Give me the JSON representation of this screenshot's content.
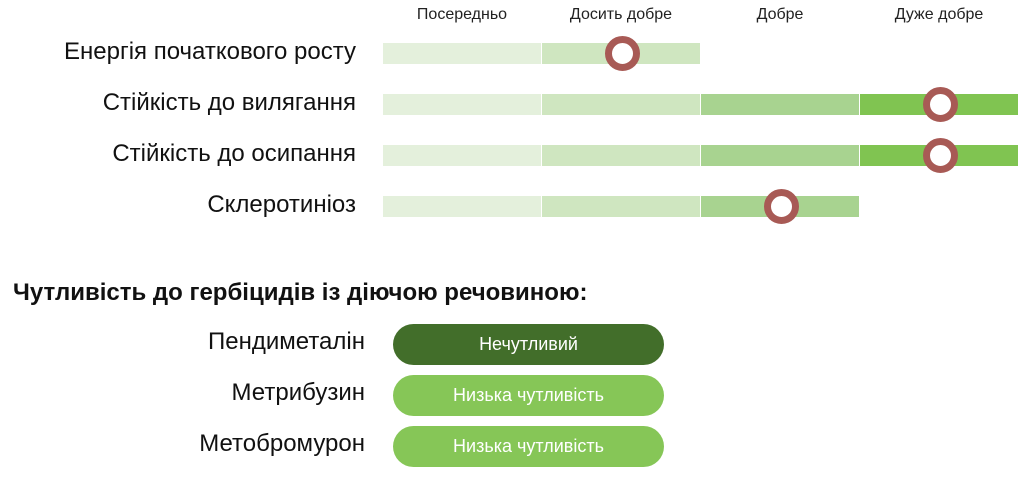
{
  "scale_headers": [
    "Посередньо",
    "Досить добре",
    "Добре",
    "Дуже добре"
  ],
  "traits": [
    {
      "label": "Енергія початкового росту",
      "level_max": 2,
      "rating": 1.5
    },
    {
      "label": "Стійкість до вилягання",
      "level_max": 4,
      "rating": 3.5
    },
    {
      "label": "Стійкість до осипання",
      "level_max": 4,
      "rating": 3.5
    },
    {
      "label": "Склеротиніоз",
      "level_max": 3,
      "rating": 2.5
    }
  ],
  "herbicides": {
    "title": "Чутливість до гербіцидів із діючою речовиною:",
    "items": [
      {
        "label": "Пендиметалін",
        "value": "Нечутливий",
        "color": "#426e2a"
      },
      {
        "label": "Метрибузин",
        "value": "Низька чутливість",
        "color": "#86c657"
      },
      {
        "label": "Метобромурон",
        "value": "Низька чутливість",
        "color": "#86c657"
      }
    ]
  },
  "colors": {
    "segments": [
      "#e4f0dc",
      "#cfe6c0",
      "#a8d390",
      "#80c451"
    ],
    "marker": "#a85a55"
  }
}
